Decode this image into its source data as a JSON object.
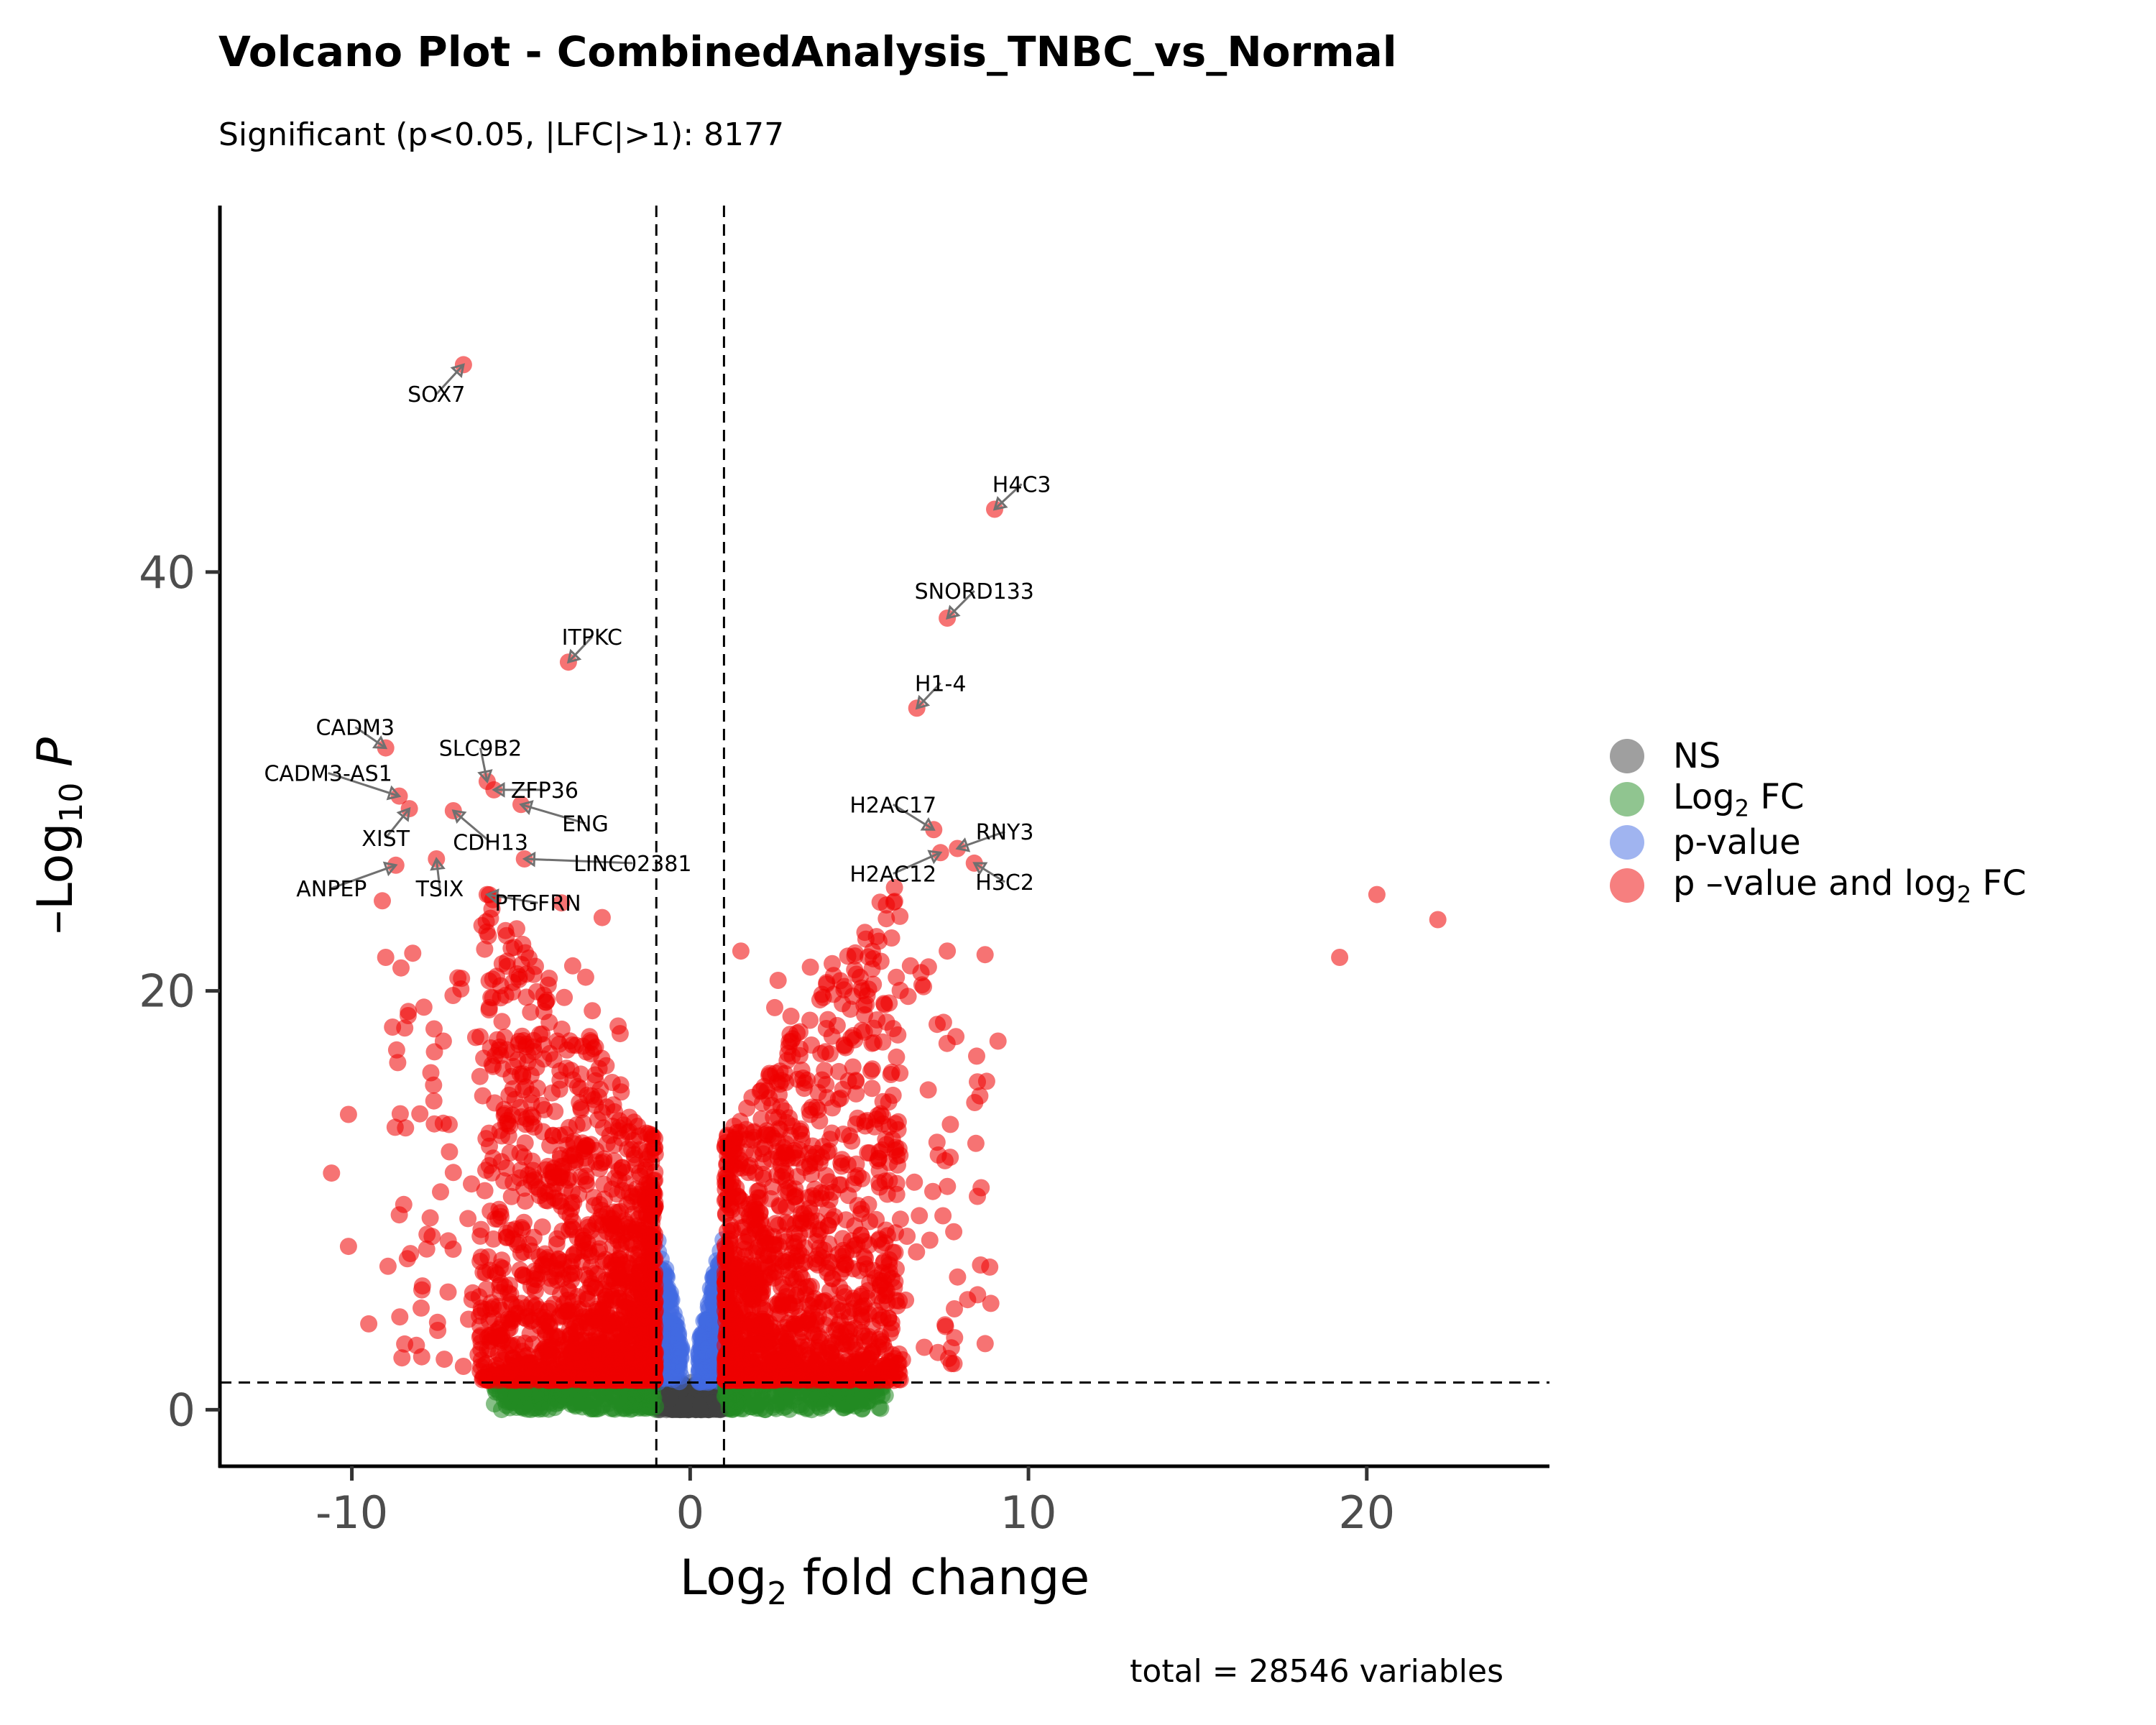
{
  "title": "Volcano Plot - CombinedAnalysis_TNBC_vs_Normal",
  "subtitle": "Significant (p<0.05, |LFC|>1): 8177",
  "caption": "total = 28546 variables",
  "colors": {
    "ns": "#404040",
    "lfc": "#228B22",
    "pval": "#4169E1",
    "both": "#EE0000"
  },
  "legend": {
    "items": [
      {
        "key": "ns",
        "label": "NS"
      },
      {
        "key": "lfc",
        "label": "Log",
        "sub": "2",
        "after": " FC"
      },
      {
        "key": "pval",
        "label": "p-value"
      },
      {
        "key": "both",
        "label": "p –value and log",
        "sub": "2",
        "after": " FC"
      }
    ]
  },
  "chart_data": {
    "type": "scatter",
    "title": "Volcano Plot - CombinedAnalysis_TNBC_vs_Normal",
    "subtitle": "Significant (p<0.05, |LFC|>1): 8177",
    "xlabel": {
      "text": "Log",
      "sub": "2",
      "after": " fold change"
    },
    "ylabel": {
      "text": "–Log",
      "sub": "10",
      "after": " P"
    },
    "xlim": [
      -13.9,
      25.4
    ],
    "ylim": [
      -2.7,
      57.5
    ],
    "x_ticks": [
      -10,
      0,
      10,
      20
    ],
    "y_ticks": [
      0,
      20,
      40
    ],
    "thresholds": {
      "lfc": [
        -1,
        1
      ],
      "neg_log10_p": 1.3
    },
    "grid": false,
    "legend_position": "right",
    "labeled_points": [
      {
        "label": "SOX7",
        "x": -6.7,
        "y": 49.9,
        "lx": -7.5,
        "ly": 48.5
      },
      {
        "label": "H4C3",
        "x": 9.0,
        "y": 43.0,
        "lx": 9.8,
        "ly": 44.2
      },
      {
        "label": "SNORD133",
        "x": 7.6,
        "y": 37.8,
        "lx": 8.4,
        "ly": 39.1
      },
      {
        "label": "ITPKC",
        "x": -3.6,
        "y": 35.7,
        "lx": -2.9,
        "ly": 36.9
      },
      {
        "label": "H1-4",
        "x": 6.7,
        "y": 33.5,
        "lx": 7.4,
        "ly": 34.7
      },
      {
        "label": "CADM3",
        "x": -9.0,
        "y": 31.6,
        "lx": -9.9,
        "ly": 32.6
      },
      {
        "label": "SLC9B2",
        "x": -6.0,
        "y": 30.0,
        "lx": -6.2,
        "ly": 31.6
      },
      {
        "label": "ZFP36",
        "x": -5.8,
        "y": 29.6,
        "lx": -4.3,
        "ly": 29.6
      },
      {
        "label": "CADM3-AS1",
        "x": -8.6,
        "y": 29.3,
        "lx": -10.7,
        "ly": 30.4
      },
      {
        "label": "ENG",
        "x": -5.0,
        "y": 28.9,
        "lx": -3.1,
        "ly": 28.0
      },
      {
        "label": "XIST",
        "x": -8.3,
        "y": 28.7,
        "lx": -9.0,
        "ly": 27.3
      },
      {
        "label": "CDH13",
        "x": -7.0,
        "y": 28.6,
        "lx": -5.9,
        "ly": 27.1
      },
      {
        "label": "H2AC17",
        "x": 7.2,
        "y": 27.7,
        "lx": 6.0,
        "ly": 28.9
      },
      {
        "label": "RNY3",
        "x": 7.9,
        "y": 26.8,
        "lx": 9.3,
        "ly": 27.6
      },
      {
        "label": "H2AC12",
        "x": 7.4,
        "y": 26.6,
        "lx": 6.0,
        "ly": 25.6
      },
      {
        "label": "H3C2",
        "x": 8.4,
        "y": 26.1,
        "lx": 9.3,
        "ly": 25.2
      },
      {
        "label": "LINC02381",
        "x": -4.9,
        "y": 26.3,
        "lx": -1.7,
        "ly": 26.1
      },
      {
        "label": "ANPEP",
        "x": -8.7,
        "y": 26.0,
        "lx": -10.6,
        "ly": 24.9
      },
      {
        "label": "TSIX",
        "x": -7.5,
        "y": 26.3,
        "lx": -7.4,
        "ly": 24.9
      },
      {
        "label": "PTGFRN",
        "x": -6.0,
        "y": 24.6,
        "lx": -4.5,
        "ly": 24.2
      }
    ],
    "extreme_points": [
      {
        "x": -6.7,
        "y": 49.9
      },
      {
        "x": 9.0,
        "y": 43.0
      },
      {
        "x": 7.6,
        "y": 37.8
      },
      {
        "x": -3.6,
        "y": 35.7
      },
      {
        "x": 6.7,
        "y": 33.5
      },
      {
        "x": -9.0,
        "y": 31.6
      },
      {
        "x": -6.0,
        "y": 30.0
      },
      {
        "x": -5.8,
        "y": 29.6
      },
      {
        "x": -8.6,
        "y": 29.3
      },
      {
        "x": -5.0,
        "y": 28.9
      },
      {
        "x": -8.3,
        "y": 28.7
      },
      {
        "x": -7.0,
        "y": 28.6
      },
      {
        "x": 7.2,
        "y": 27.7
      },
      {
        "x": 7.9,
        "y": 26.8
      },
      {
        "x": 7.4,
        "y": 26.6
      },
      {
        "x": 8.4,
        "y": 26.1
      },
      {
        "x": -4.9,
        "y": 26.3
      },
      {
        "x": -8.7,
        "y": 26.0
      },
      {
        "x": -7.5,
        "y": 26.3
      },
      {
        "x": -6.0,
        "y": 24.6
      },
      {
        "x": -9.1,
        "y": 24.3
      },
      {
        "x": -3.8,
        "y": 24.2
      },
      {
        "x": -2.6,
        "y": 23.5
      },
      {
        "x": 5.8,
        "y": 24.1
      },
      {
        "x": 20.3,
        "y": 24.6
      },
      {
        "x": 22.1,
        "y": 23.4
      },
      {
        "x": 19.2,
        "y": 21.6
      },
      {
        "x": -9.0,
        "y": 21.6
      },
      {
        "x": -8.2,
        "y": 21.8
      },
      {
        "x": 1.5,
        "y": 21.9
      },
      {
        "x": 7.6,
        "y": 21.9
      },
      {
        "x": 4.2,
        "y": 21.3
      },
      {
        "x": 9.1,
        "y": 17.6
      },
      {
        "x": -10.6,
        "y": 11.3
      },
      {
        "x": 8.6,
        "y": 10.6
      },
      {
        "x": 7.8,
        "y": 2.2
      },
      {
        "x": 2.6,
        "y": 20.5
      },
      {
        "x": 6.9,
        "y": 20.2
      },
      {
        "x": 2.5,
        "y": 19.2
      },
      {
        "x": 7.3,
        "y": 18.4
      },
      {
        "x": -10.1,
        "y": 14.1
      },
      {
        "x": -10.1,
        "y": 7.8
      },
      {
        "x": -9.5,
        "y": 4.1
      },
      {
        "x": 6.0,
        "y": 18.2
      }
    ]
  }
}
